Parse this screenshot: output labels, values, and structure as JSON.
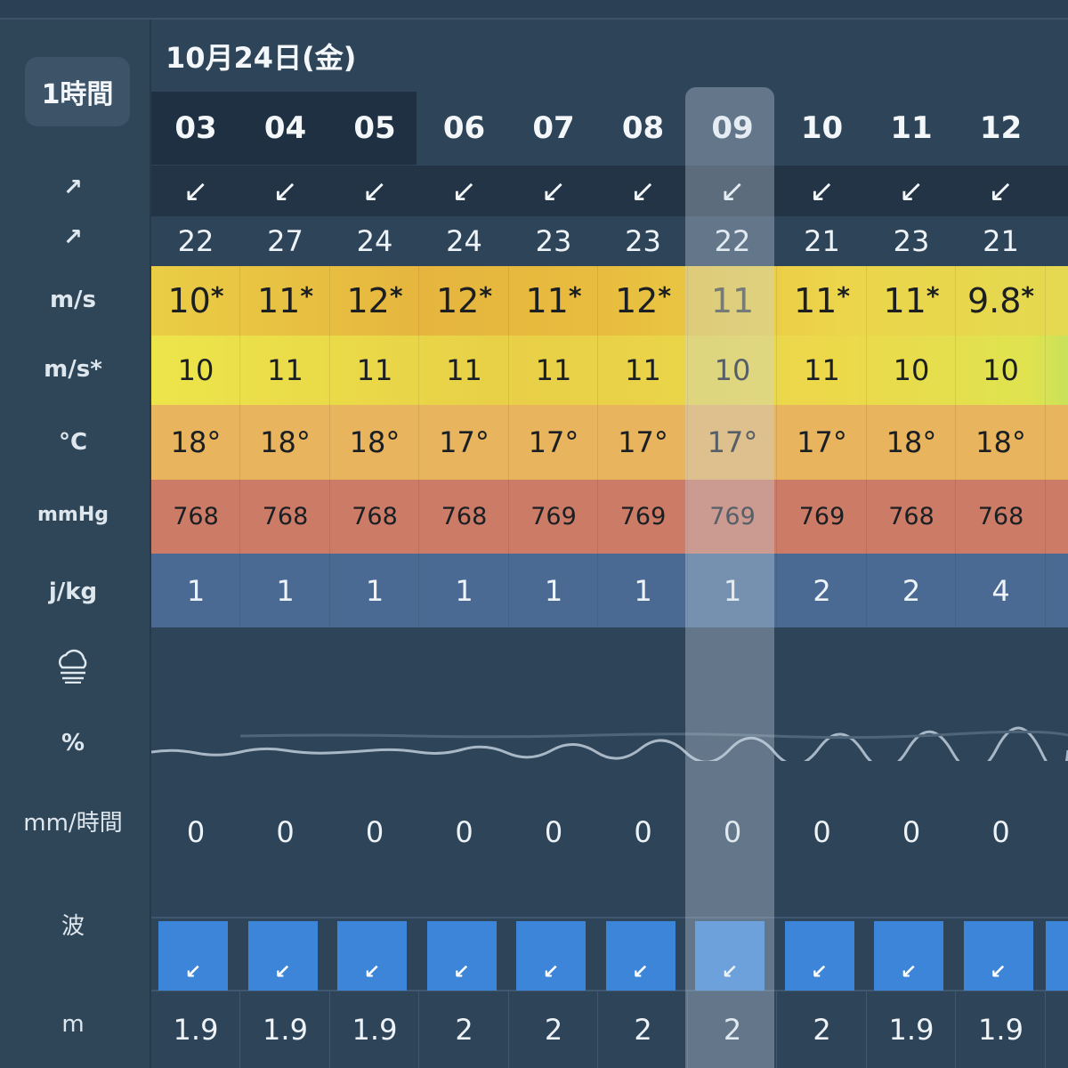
{
  "sidebar": {
    "interval_button": "1時間",
    "labels": [
      "↗",
      "↗",
      "m/s",
      "m/s*",
      "°C",
      "mmHg",
      "j/kg",
      "%",
      "mm/時間",
      "波",
      "m"
    ]
  },
  "header": {
    "date": "10月24日(金)"
  },
  "hours": [
    "03",
    "04",
    "05",
    "06",
    "07",
    "08",
    "09",
    "10",
    "11",
    "12"
  ],
  "selected_hour": "09",
  "wind_dir_arrows": [
    "↙",
    "↙",
    "↙",
    "↙",
    "↙",
    "↙",
    "↙",
    "↙",
    "↙",
    "↙"
  ],
  "gust_dir": [
    "22",
    "27",
    "24",
    "24",
    "23",
    "23",
    "22",
    "21",
    "23",
    "21"
  ],
  "wind_speed": [
    "10",
    "11",
    "12",
    "12",
    "11",
    "12",
    "11",
    "11",
    "11",
    "9.8"
  ],
  "wind_speed_star": [
    "*",
    "*",
    "*",
    "*",
    "*",
    "*",
    "",
    "*",
    "*",
    "*"
  ],
  "wind_star_row": [
    "10",
    "11",
    "11",
    "11",
    "11",
    "11",
    "10",
    "11",
    "10",
    "10"
  ],
  "temperature": [
    "18°",
    "18°",
    "18°",
    "17°",
    "17°",
    "17°",
    "17°",
    "17°",
    "18°",
    "18°"
  ],
  "pressure": [
    "768",
    "768",
    "768",
    "768",
    "769",
    "769",
    "769",
    "769",
    "768",
    "768"
  ],
  "cape": [
    "1",
    "1",
    "1",
    "1",
    "1",
    "1",
    "1",
    "2",
    "2",
    "4"
  ],
  "precip": [
    "0",
    "0",
    "0",
    "0",
    "0",
    "0",
    "0",
    "0",
    "0",
    "0"
  ],
  "wave_arrows": [
    "↙",
    "↙",
    "↙",
    "↙",
    "↙",
    "↙",
    "↙",
    "↙",
    "↙",
    "↙"
  ],
  "wave_height": [
    "1.9",
    "1.9",
    "1.9",
    "2",
    "2",
    "2",
    "2",
    "2",
    "1.9",
    "1.9"
  ],
  "colors": {
    "background": "#2e4459",
    "pressure_row": "#cc7b66",
    "cape_row": "#4a6a94",
    "wave_box": "#3d85d8",
    "temp_row": "#e8b45e"
  }
}
